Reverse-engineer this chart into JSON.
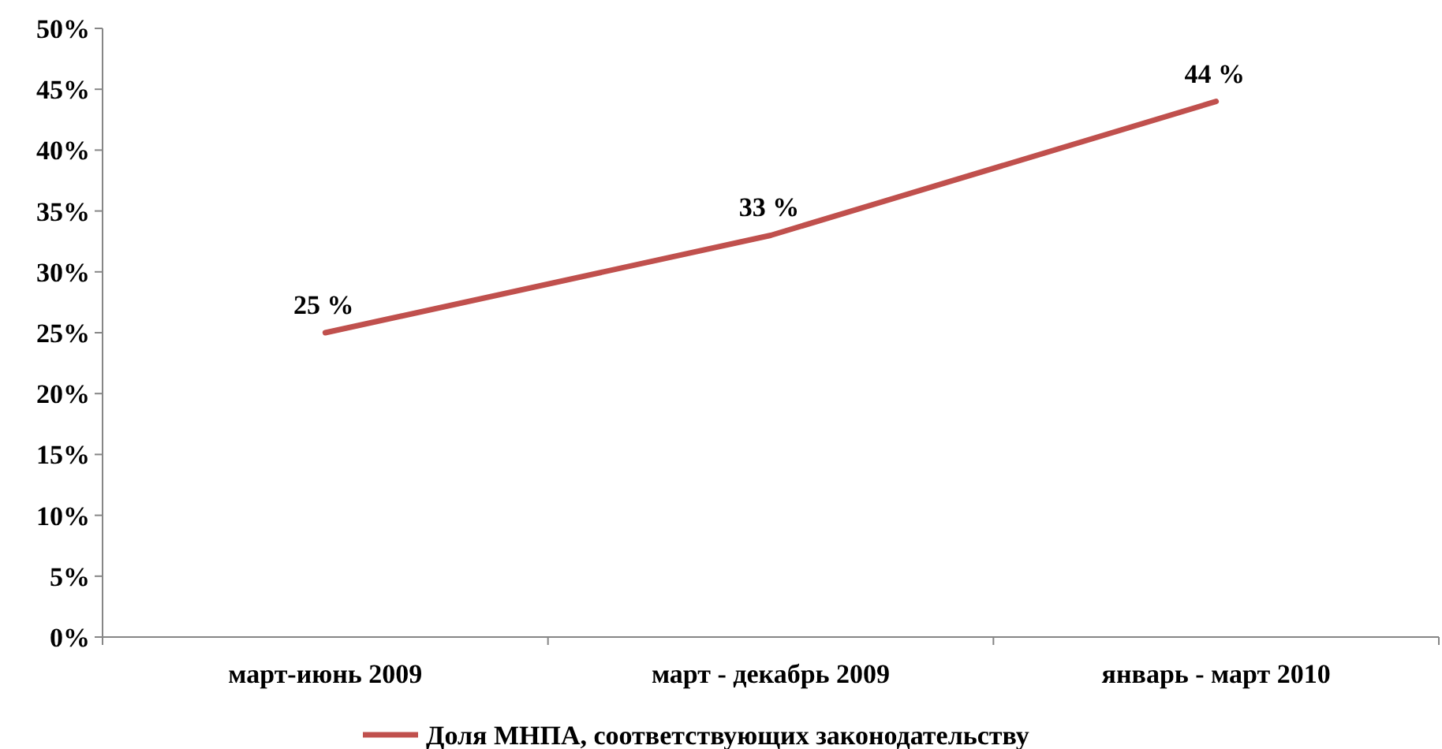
{
  "chart_data": {
    "type": "line",
    "categories": [
      "март-июнь 2009",
      "март - декабрь 2009",
      "январь - март 2010"
    ],
    "series": [
      {
        "name": "Доля МНПА, соответствующих законодательству",
        "color": "#c0504d",
        "values": [
          25,
          33,
          44
        ],
        "value_labels": [
          "25 %",
          "33 %",
          "44 %"
        ]
      }
    ],
    "ylim": [
      0,
      50
    ],
    "yticks": [
      {
        "value": 0,
        "label": "0%"
      },
      {
        "value": 5,
        "label": "5%"
      },
      {
        "value": 10,
        "label": "10%"
      },
      {
        "value": 15,
        "label": "15%"
      },
      {
        "value": 20,
        "label": "20%"
      },
      {
        "value": 25,
        "label": "25%"
      },
      {
        "value": 30,
        "label": "30%"
      },
      {
        "value": 35,
        "label": "35%"
      },
      {
        "value": 40,
        "label": "40%"
      },
      {
        "value": 45,
        "label": "45%"
      },
      {
        "value": 50,
        "label": "50%"
      }
    ],
    "grid": false,
    "legend": "bottom",
    "marker": "none",
    "line_style": "solid"
  }
}
